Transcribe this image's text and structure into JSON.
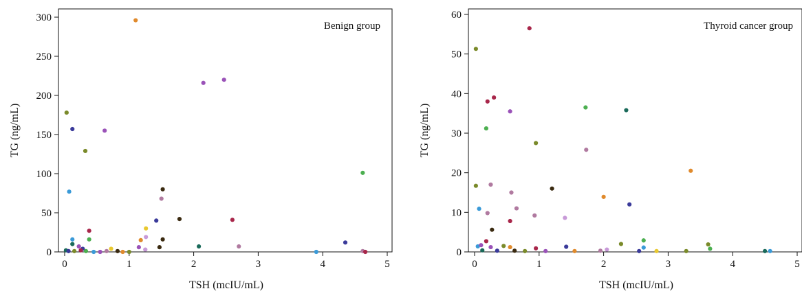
{
  "chart_data": [
    {
      "type": "scatter",
      "legend_text": "Benign group",
      "legend_position": "top-right",
      "xlabel": "TSH (mcIU/mL)",
      "ylabel": "TG (ng/mL)",
      "xlim": [
        0,
        5
      ],
      "ylim": [
        0,
        310
      ],
      "xticks": [
        0,
        1,
        2,
        3,
        4,
        5
      ],
      "yticks": [
        0,
        50,
        100,
        150,
        200,
        250,
        300
      ],
      "grid": false,
      "points": [
        {
          "x": 1.1,
          "y": 296,
          "color": "#e08a2c"
        },
        {
          "x": 2.47,
          "y": 220,
          "color": "#9a52b8"
        },
        {
          "x": 2.15,
          "y": 216,
          "color": "#9a52b8"
        },
        {
          "x": 0.03,
          "y": 178,
          "color": "#7a8a2a"
        },
        {
          "x": 0.12,
          "y": 157,
          "color": "#3a3a9a"
        },
        {
          "x": 0.62,
          "y": 155,
          "color": "#9a52b8"
        },
        {
          "x": 0.32,
          "y": 129,
          "color": "#7a8a2a"
        },
        {
          "x": 4.62,
          "y": 101,
          "color": "#4caf50"
        },
        {
          "x": 1.52,
          "y": 80,
          "color": "#3a2a10"
        },
        {
          "x": 0.07,
          "y": 77,
          "color": "#3a9ad8"
        },
        {
          "x": 1.5,
          "y": 68,
          "color": "#b07aa0"
        },
        {
          "x": 1.78,
          "y": 42,
          "color": "#3a2a10"
        },
        {
          "x": 2.6,
          "y": 41,
          "color": "#a8264a"
        },
        {
          "x": 1.42,
          "y": 40,
          "color": "#3a3a9a"
        },
        {
          "x": 1.26,
          "y": 30,
          "color": "#e8c830"
        },
        {
          "x": 0.38,
          "y": 27,
          "color": "#a8264a"
        },
        {
          "x": 1.26,
          "y": 19,
          "color": "#c89ad8"
        },
        {
          "x": 0.12,
          "y": 16,
          "color": "#3a9ad8"
        },
        {
          "x": 0.38,
          "y": 16,
          "color": "#4caf50"
        },
        {
          "x": 1.52,
          "y": 16,
          "color": "#3a2a10"
        },
        {
          "x": 1.18,
          "y": 15,
          "color": "#e08a2c"
        },
        {
          "x": 4.35,
          "y": 12,
          "color": "#3a3a9a"
        },
        {
          "x": 0.12,
          "y": 10,
          "color": "#1a6a5a"
        },
        {
          "x": 0.22,
          "y": 7,
          "color": "#9a52b8"
        },
        {
          "x": 2.08,
          "y": 7,
          "color": "#1a6a5a"
        },
        {
          "x": 2.7,
          "y": 7,
          "color": "#b07aa0"
        },
        {
          "x": 1.15,
          "y": 6,
          "color": "#9a52b8"
        },
        {
          "x": 1.47,
          "y": 6,
          "color": "#3a2a10"
        },
        {
          "x": 0.28,
          "y": 4,
          "color": "#3a3a9a"
        },
        {
          "x": 0.72,
          "y": 4,
          "color": "#e8c830"
        },
        {
          "x": 1.25,
          "y": 3,
          "color": "#c89ad8"
        },
        {
          "x": 0.02,
          "y": 2,
          "color": "#1a6a5a"
        },
        {
          "x": 0.06,
          "y": 1,
          "color": "#3a3a9a"
        },
        {
          "x": 0.15,
          "y": 1,
          "color": "#7a8a2a"
        },
        {
          "x": 0.25,
          "y": 2,
          "color": "#a8264a"
        },
        {
          "x": 0.33,
          "y": 1,
          "color": "#4caf50"
        },
        {
          "x": 0.45,
          "y": 0,
          "color": "#3a9ad8"
        },
        {
          "x": 0.55,
          "y": 0,
          "color": "#9a52b8"
        },
        {
          "x": 0.65,
          "y": 1,
          "color": "#b07aa0"
        },
        {
          "x": 0.82,
          "y": 1,
          "color": "#3a2a10"
        },
        {
          "x": 0.9,
          "y": 0,
          "color": "#e08a2c"
        },
        {
          "x": 1.0,
          "y": 0,
          "color": "#7a8a2a"
        },
        {
          "x": 3.9,
          "y": 0,
          "color": "#3a9ad8"
        },
        {
          "x": 4.62,
          "y": 1,
          "color": "#b07aa0"
        },
        {
          "x": 4.66,
          "y": 0,
          "color": "#a8264a"
        }
      ]
    },
    {
      "type": "scatter",
      "legend_text": "Thyroid cancer group",
      "legend_position": "top-right",
      "xlabel": "TSH (mcIU/mL)",
      "ylabel": "TG (ng/mL)",
      "xlim": [
        0,
        5
      ],
      "ylim": [
        0,
        62
      ],
      "xticks": [
        0,
        1,
        2,
        3,
        4,
        5
      ],
      "yticks": [
        0,
        10,
        20,
        30,
        40,
        50,
        60
      ],
      "grid": false,
      "points": [
        {
          "x": 0.85,
          "y": 56.5,
          "color": "#a8264a"
        },
        {
          "x": 0.02,
          "y": 51.3,
          "color": "#7a8a2a"
        },
        {
          "x": 0.3,
          "y": 39.0,
          "color": "#a8264a"
        },
        {
          "x": 0.2,
          "y": 38.0,
          "color": "#a8264a"
        },
        {
          "x": 1.72,
          "y": 36.5,
          "color": "#4caf50"
        },
        {
          "x": 2.35,
          "y": 35.8,
          "color": "#1a6a5a"
        },
        {
          "x": 0.55,
          "y": 35.5,
          "color": "#9a52b8"
        },
        {
          "x": 0.18,
          "y": 31.2,
          "color": "#4caf50"
        },
        {
          "x": 0.95,
          "y": 27.5,
          "color": "#7a8a2a"
        },
        {
          "x": 1.73,
          "y": 25.8,
          "color": "#b07aa0"
        },
        {
          "x": 3.35,
          "y": 20.5,
          "color": "#e08a2c"
        },
        {
          "x": 0.25,
          "y": 17.0,
          "color": "#b07aa0"
        },
        {
          "x": 0.02,
          "y": 16.7,
          "color": "#7a8a2a"
        },
        {
          "x": 1.2,
          "y": 16.0,
          "color": "#3a2a10"
        },
        {
          "x": 0.57,
          "y": 15.0,
          "color": "#b07aa0"
        },
        {
          "x": 2.0,
          "y": 13.9,
          "color": "#e08a2c"
        },
        {
          "x": 2.4,
          "y": 12.0,
          "color": "#3a3a9a"
        },
        {
          "x": 0.65,
          "y": 11.0,
          "color": "#b07aa0"
        },
        {
          "x": 0.07,
          "y": 10.9,
          "color": "#3a9ad8"
        },
        {
          "x": 0.2,
          "y": 9.8,
          "color": "#b07aa0"
        },
        {
          "x": 0.93,
          "y": 9.2,
          "color": "#b07aa0"
        },
        {
          "x": 1.4,
          "y": 8.6,
          "color": "#c89ad8"
        },
        {
          "x": 0.55,
          "y": 7.8,
          "color": "#a8264a"
        },
        {
          "x": 0.27,
          "y": 5.6,
          "color": "#3a2a10"
        },
        {
          "x": 0.18,
          "y": 2.7,
          "color": "#a8264a"
        },
        {
          "x": 2.27,
          "y": 2.0,
          "color": "#7a8a2a"
        },
        {
          "x": 2.62,
          "y": 2.9,
          "color": "#4caf50"
        },
        {
          "x": 3.62,
          "y": 1.9,
          "color": "#7a8a2a"
        },
        {
          "x": 0.05,
          "y": 1.4,
          "color": "#3a9ad8"
        },
        {
          "x": 0.1,
          "y": 1.7,
          "color": "#9a52b8"
        },
        {
          "x": 0.25,
          "y": 1.2,
          "color": "#9a52b8"
        },
        {
          "x": 0.45,
          "y": 1.5,
          "color": "#7a8a2a"
        },
        {
          "x": 0.55,
          "y": 1.2,
          "color": "#e08a2c"
        },
        {
          "x": 1.42,
          "y": 1.3,
          "color": "#3a3a9a"
        },
        {
          "x": 2.62,
          "y": 1.1,
          "color": "#3a9ad8"
        },
        {
          "x": 0.95,
          "y": 0.9,
          "color": "#a8264a"
        },
        {
          "x": 3.65,
          "y": 0.8,
          "color": "#4caf50"
        },
        {
          "x": 0.12,
          "y": 0.4,
          "color": "#1a6a5a"
        },
        {
          "x": 0.35,
          "y": 0.3,
          "color": "#3a3a9a"
        },
        {
          "x": 0.62,
          "y": 0.3,
          "color": "#3a2a10"
        },
        {
          "x": 0.78,
          "y": 0.2,
          "color": "#7a8a2a"
        },
        {
          "x": 1.1,
          "y": 0.2,
          "color": "#9a52b8"
        },
        {
          "x": 1.55,
          "y": 0.2,
          "color": "#e08a2c"
        },
        {
          "x": 1.95,
          "y": 0.3,
          "color": "#b07aa0"
        },
        {
          "x": 2.05,
          "y": 0.6,
          "color": "#c89ad8"
        },
        {
          "x": 2.55,
          "y": 0.2,
          "color": "#3a3a9a"
        },
        {
          "x": 2.82,
          "y": 0.2,
          "color": "#e8c830"
        },
        {
          "x": 3.28,
          "y": 0.2,
          "color": "#7a8a2a"
        },
        {
          "x": 4.5,
          "y": 0.2,
          "color": "#1a6a5a"
        },
        {
          "x": 4.58,
          "y": 0.2,
          "color": "#3a9ad8"
        }
      ]
    }
  ]
}
